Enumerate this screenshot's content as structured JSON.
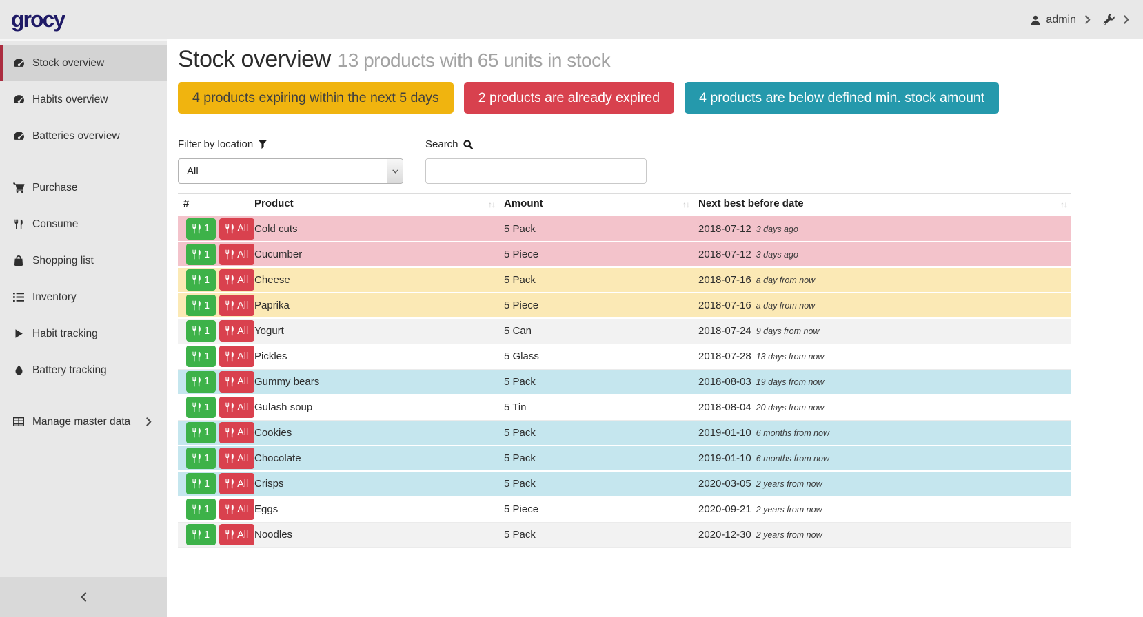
{
  "header": {
    "logo": "grocy",
    "user": "admin"
  },
  "sidebar": {
    "items": [
      {
        "label": "Stock overview",
        "icon": "tachometer",
        "active": true
      },
      {
        "label": "Habits overview",
        "icon": "tachometer"
      },
      {
        "label": "Batteries overview",
        "icon": "tachometer"
      },
      {
        "label": "Purchase",
        "icon": "cart",
        "gap": true
      },
      {
        "label": "Consume",
        "icon": "utensils"
      },
      {
        "label": "Shopping list",
        "icon": "bag"
      },
      {
        "label": "Inventory",
        "icon": "list"
      },
      {
        "label": "Habit tracking",
        "icon": "play"
      },
      {
        "label": "Battery tracking",
        "icon": "drop"
      },
      {
        "label": "Manage master data",
        "icon": "table",
        "gap": true,
        "has_submenu": true
      }
    ]
  },
  "page": {
    "title": "Stock overview",
    "subtitle": "13 products with 65 units in stock",
    "badges": [
      {
        "label": "4 products expiring within the next 5 days",
        "color": "#f0b40f",
        "text": "#3f3f3f"
      },
      {
        "label": "2 products are already expired",
        "color": "#d8414e",
        "text": "#ffffff"
      },
      {
        "label": "4 products are below defined min. stock amount",
        "color": "#2599ac",
        "text": "#ffffff"
      }
    ],
    "filter": {
      "label": "Filter by location",
      "value": "All"
    },
    "search": {
      "label": "Search",
      "value": ""
    }
  },
  "table": {
    "columns": [
      "#",
      "Product",
      "Amount",
      "Next best before date"
    ],
    "row_buttons": {
      "consume_one": "1",
      "consume_all": "All"
    },
    "rows": [
      {
        "product": "Cold cuts",
        "amount": "5 Pack",
        "date": "2018-07-12",
        "relative": "3 days ago",
        "status": "danger"
      },
      {
        "product": "Cucumber",
        "amount": "5 Piece",
        "date": "2018-07-12",
        "relative": "3 days ago",
        "status": "danger"
      },
      {
        "product": "Cheese",
        "amount": "5 Pack",
        "date": "2018-07-16",
        "relative": "a day from now",
        "status": "warning"
      },
      {
        "product": "Paprika",
        "amount": "5 Piece",
        "date": "2018-07-16",
        "relative": "a day from now",
        "status": "warning"
      },
      {
        "product": "Yogurt",
        "amount": "5 Can",
        "date": "2018-07-24",
        "relative": "9 days from now",
        "status": "stripe"
      },
      {
        "product": "Pickles",
        "amount": "5 Glass",
        "date": "2018-07-28",
        "relative": "13 days from now",
        "status": "plain"
      },
      {
        "product": "Gummy bears",
        "amount": "5 Pack",
        "date": "2018-08-03",
        "relative": "19 days from now",
        "status": "info"
      },
      {
        "product": "Gulash soup",
        "amount": "5 Tin",
        "date": "2018-08-04",
        "relative": "20 days from now",
        "status": "plain"
      },
      {
        "product": "Cookies",
        "amount": "5 Pack",
        "date": "2019-01-10",
        "relative": "6 months from now",
        "status": "info"
      },
      {
        "product": "Chocolate",
        "amount": "5 Pack",
        "date": "2019-01-10",
        "relative": "6 months from now",
        "status": "info"
      },
      {
        "product": "Crisps",
        "amount": "5 Pack",
        "date": "2020-03-05",
        "relative": "2 years from now",
        "status": "info"
      },
      {
        "product": "Eggs",
        "amount": "5 Piece",
        "date": "2020-09-21",
        "relative": "2 years from now",
        "status": "plain"
      },
      {
        "product": "Noodles",
        "amount": "5 Pack",
        "date": "2020-12-30",
        "relative": "2 years from now",
        "status": "stripe"
      }
    ]
  },
  "colors": {
    "logo_navy": "#1f1a66",
    "sidebar_active_accent": "#ab2c3f",
    "button_consume_one": "#3db249",
    "button_consume_all": "#d9414e",
    "row_danger": "#f3c3cb",
    "row_warning": "#fbe9b5",
    "row_info": "#c5e6ee",
    "row_stripe": "#f2f2f2"
  }
}
